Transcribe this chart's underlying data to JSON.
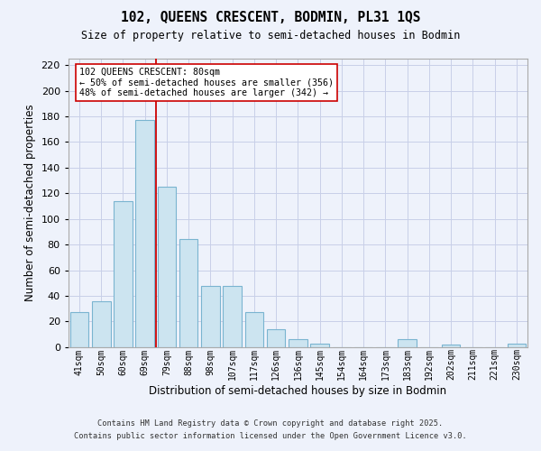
{
  "title": "102, QUEENS CRESCENT, BODMIN, PL31 1QS",
  "subtitle": "Size of property relative to semi-detached houses in Bodmin",
  "xlabel": "Distribution of semi-detached houses by size in Bodmin",
  "ylabel": "Number of semi-detached properties",
  "footer_line1": "Contains HM Land Registry data © Crown copyright and database right 2025.",
  "footer_line2": "Contains public sector information licensed under the Open Government Licence v3.0.",
  "bar_labels": [
    "41sqm",
    "50sqm",
    "60sqm",
    "69sqm",
    "79sqm",
    "88sqm",
    "98sqm",
    "107sqm",
    "117sqm",
    "126sqm",
    "136sqm",
    "145sqm",
    "154sqm",
    "164sqm",
    "173sqm",
    "183sqm",
    "192sqm",
    "202sqm",
    "211sqm",
    "221sqm",
    "230sqm"
  ],
  "bar_values": [
    27,
    36,
    114,
    177,
    125,
    84,
    48,
    48,
    27,
    14,
    6,
    3,
    0,
    0,
    0,
    6,
    0,
    2,
    0,
    0,
    3
  ],
  "bar_color": "#cce4f0",
  "bar_edge_color": "#7ab4d0",
  "bg_color": "#eef2fb",
  "grid_color": "#c8cfe8",
  "annotation_line1": "102 QUEENS CRESCENT: 80sqm",
  "annotation_line2": "← 50% of semi-detached houses are smaller (356)",
  "annotation_line3": "48% of semi-detached houses are larger (342) →",
  "vline_color": "#cc0000",
  "vline_x_index": 4,
  "ylim_max": 225,
  "yticks": [
    0,
    20,
    40,
    60,
    80,
    100,
    120,
    140,
    160,
    180,
    200,
    220
  ]
}
